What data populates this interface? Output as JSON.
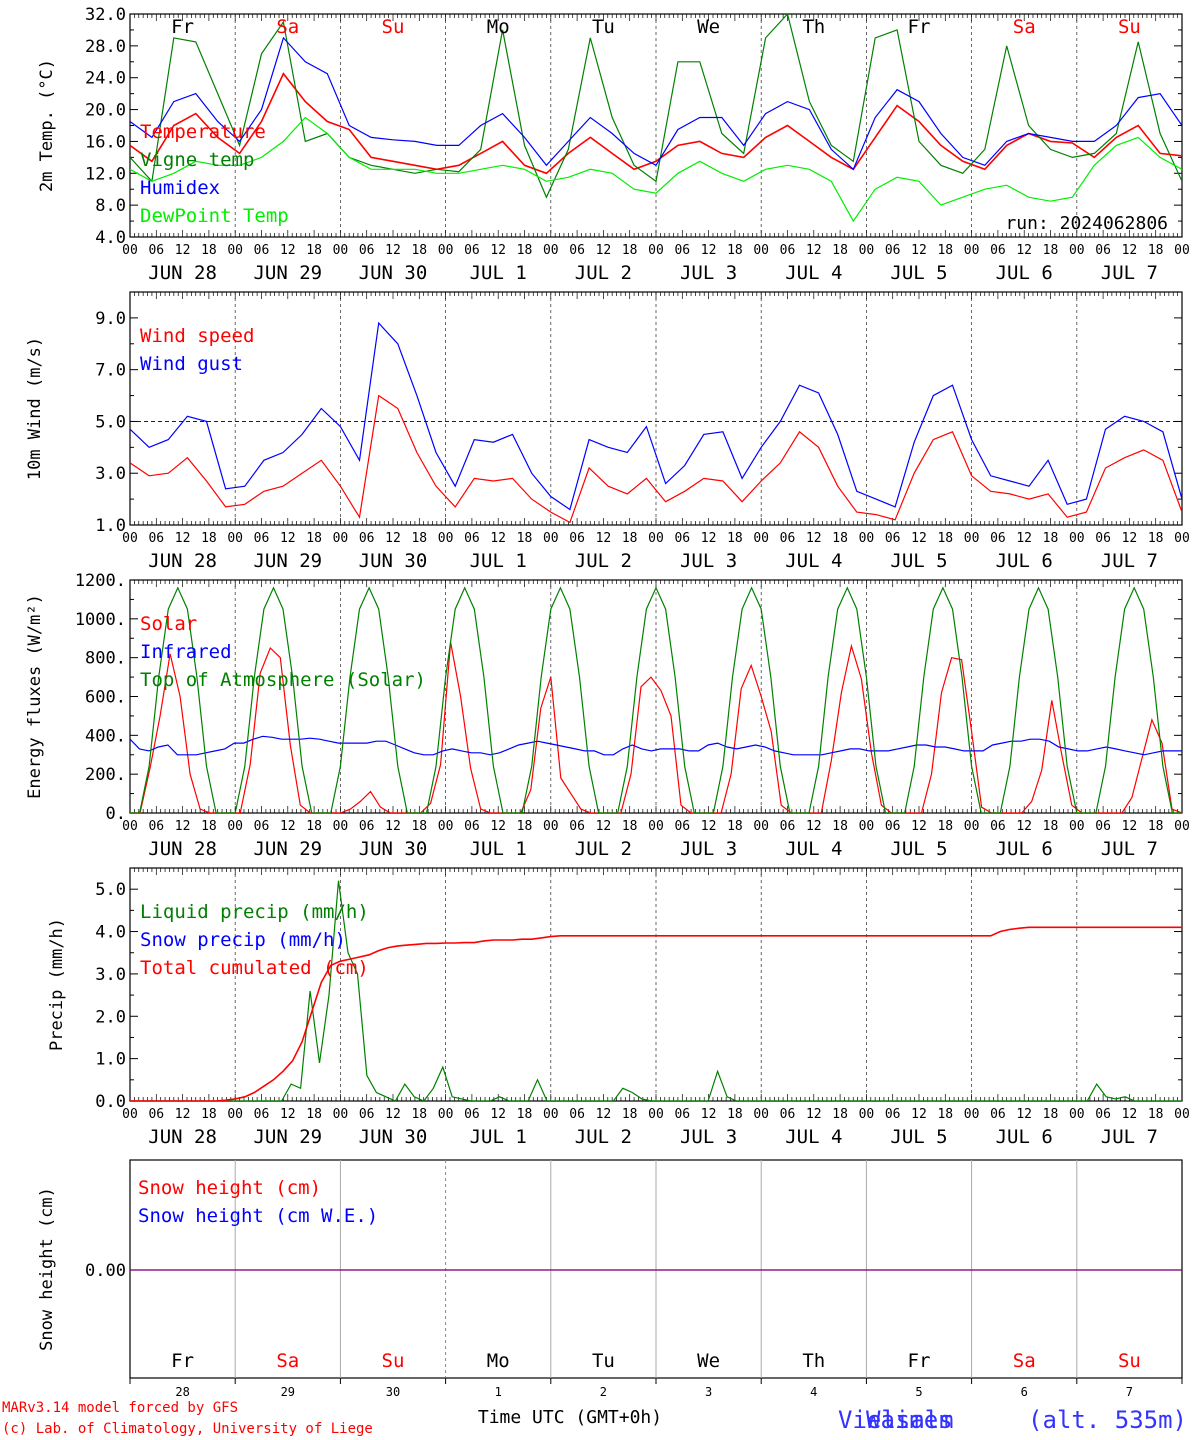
{
  "days": {
    "names": [
      "Fr",
      "Sa",
      "Su",
      "Mo",
      "Tu",
      "We",
      "Th",
      "Fr",
      "Sa",
      "Su"
    ],
    "weekend": [
      false,
      true,
      true,
      false,
      false,
      false,
      false,
      false,
      true,
      true
    ],
    "dates": [
      "JUN 28",
      "JUN 29",
      "JUN 30",
      "JUL  1",
      "JUL  2",
      "JUL  3",
      "JUL  4",
      "JUL  5",
      "JUL  6",
      "JUL  7"
    ],
    "day_numbers": [
      "28",
      "29",
      "30",
      "1",
      "2",
      "3",
      "4",
      "5",
      "6",
      "7"
    ],
    "hour_ticks": [
      "00",
      "06",
      "12",
      "18"
    ],
    "end_hour": "00"
  },
  "colors": {
    "temperature": "#ff0000",
    "vigne": "#008000",
    "humidex": "#0000ff",
    "dewpoint": "#00ee00",
    "weekday": "#000000",
    "weekend": "#ff0000",
    "footer": "#ff0000",
    "station": "#3333ff"
  },
  "footer": {
    "model_line": "MARv3.14 model forced by GFS",
    "credit_line": "(c) Lab. of Climatology, University of Liege",
    "xlabel": "Time UTC (GMT+0h)",
    "station_overlay": "Vielsalm",
    "station": "Waimes",
    "station_suffix": "(alt. 535m)"
  },
  "chart_data": [
    {
      "id": "temperature",
      "type": "line",
      "ylabel": "2m Temp. (°C)",
      "ylim": [
        4,
        32
      ],
      "yticks": [
        "4.0",
        "8.0",
        "12.0",
        "16.0",
        "20.0",
        "24.0",
        "28.0",
        "32.0"
      ],
      "run_label": "run: 2024062806",
      "x_hours_start": 0,
      "x_hours_end": 240,
      "step_hours": 6,
      "series": [
        {
          "name": "Temperature",
          "color": "#ff0000",
          "values": [
            15.5,
            13.5,
            18,
            19.5,
            16.5,
            14.5,
            18.5,
            24.5,
            21,
            18.5,
            17.5,
            14,
            13.5,
            13,
            12.5,
            13,
            14.5,
            16,
            13,
            12,
            14.5,
            16.5,
            14.5,
            12.5,
            13.5,
            15.5,
            16,
            14.5,
            14,
            16.5,
            18,
            16,
            14,
            12.5,
            16.5,
            20.5,
            18.5,
            15.5,
            13.5,
            12.5,
            15.5,
            17,
            16,
            15.8,
            14,
            16.5,
            18,
            14.5,
            14.2
          ]
        },
        {
          "name": "Vigne temp",
          "color": "#008000",
          "values": [
            14,
            11,
            29,
            28.5,
            22,
            15.5,
            27,
            31,
            16,
            17,
            14,
            13,
            12.5,
            12,
            12.5,
            12.2,
            15,
            30,
            15.5,
            9,
            15,
            29,
            19,
            13,
            11,
            26,
            26,
            17,
            14.5,
            29,
            32,
            21,
            15.5,
            13.5,
            29,
            30,
            16,
            13,
            12,
            15,
            28,
            18,
            15,
            14,
            14.5,
            17,
            28.5,
            17,
            11
          ]
        },
        {
          "name": "Humidex",
          "color": "#0000ff",
          "values": [
            18.5,
            16.5,
            21,
            22,
            18.5,
            16,
            20,
            29,
            26,
            24.5,
            18,
            16.5,
            16.2,
            16,
            15.5,
            15.5,
            18,
            19.5,
            16.5,
            13,
            16,
            19,
            17,
            14.5,
            13,
            17.5,
            19,
            19,
            15.5,
            19.5,
            21,
            20,
            15,
            12.5,
            19,
            22.5,
            21,
            17,
            14,
            13,
            16,
            17,
            16.5,
            16,
            16,
            18,
            21.5,
            22,
            18
          ]
        },
        {
          "name": "DewPoint Temp",
          "color": "#00ee00",
          "values": [
            12.5,
            11,
            12,
            13.5,
            13,
            13,
            14,
            16,
            19,
            17,
            14,
            12.5,
            12.5,
            12.5,
            12,
            12,
            12.5,
            13,
            12.5,
            11,
            11.5,
            12.5,
            12,
            10,
            9.5,
            12,
            13.5,
            12,
            11,
            12.5,
            13,
            12.5,
            11,
            6,
            10,
            11.5,
            11,
            8,
            9,
            10,
            10.5,
            9,
            8.5,
            9,
            13,
            15.5,
            16.5,
            14,
            12.5
          ]
        }
      ]
    },
    {
      "id": "wind",
      "type": "line",
      "ylabel": "10m Wind (m/s)",
      "ylim": [
        1,
        10
      ],
      "yticks": [
        "1.0",
        "3.0",
        "5.0",
        "7.0",
        "9.0"
      ],
      "reference_line": 5,
      "x_hours_start": 0,
      "x_hours_end": 240,
      "step_hours": 6,
      "series": [
        {
          "name": "Wind speed",
          "color": "#ff0000",
          "values": [
            3.4,
            2.9,
            3.0,
            3.6,
            2.7,
            1.7,
            1.8,
            2.3,
            2.5,
            3.0,
            3.5,
            2.5,
            1.3,
            6.0,
            5.5,
            3.8,
            2.5,
            1.7,
            2.8,
            2.7,
            2.8,
            2.0,
            1.5,
            1.1,
            3.2,
            2.5,
            2.2,
            2.8,
            1.9,
            2.3,
            2.8,
            2.7,
            1.9,
            2.7,
            3.4,
            4.6,
            4.0,
            2.5,
            1.5,
            1.4,
            1.2,
            3.0,
            4.3,
            4.6,
            2.9,
            2.3,
            2.2,
            2.0,
            2.2,
            1.3,
            1.5,
            3.2,
            3.6,
            3.9,
            3.5,
            1.5
          ]
        },
        {
          "name": "Wind gust",
          "color": "#0000ff",
          "values": [
            4.7,
            4.0,
            4.3,
            5.2,
            5.0,
            2.4,
            2.5,
            3.5,
            3.8,
            4.5,
            5.5,
            4.8,
            3.5,
            8.8,
            8.0,
            6.0,
            3.8,
            2.5,
            4.3,
            4.2,
            4.5,
            3.0,
            2.1,
            1.6,
            4.3,
            4.0,
            3.8,
            4.8,
            2.6,
            3.3,
            4.5,
            4.6,
            2.8,
            4.0,
            5.0,
            6.4,
            6.1,
            4.5,
            2.3,
            2.0,
            1.7,
            4.2,
            6.0,
            6.4,
            4.3,
            2.9,
            2.7,
            2.5,
            3.5,
            1.8,
            2.0,
            4.7,
            5.2,
            5.0,
            4.6,
            2.0
          ]
        }
      ]
    },
    {
      "id": "energy",
      "type": "line",
      "ylabel": "Energy fluxes (W/m²)",
      "ylim": [
        0,
        1200
      ],
      "yticks": [
        "0.",
        "200.",
        "400.",
        "600.",
        "800.",
        "1000.",
        "1200."
      ],
      "x_hours_start": 0,
      "x_hours_end": 240,
      "step_hours": 3,
      "series": [
        {
          "name": "Solar",
          "color": "#ff0000",
          "values": [
            0,
            0,
            230,
            500,
            820,
            600,
            200,
            20,
            0,
            0,
            0,
            0,
            250,
            720,
            850,
            800,
            350,
            40,
            0,
            0,
            0,
            0,
            20,
            60,
            110,
            30,
            0,
            0,
            0,
            0,
            50,
            250,
            880,
            600,
            230,
            20,
            0,
            0,
            0,
            0,
            120,
            540,
            700,
            180,
            100,
            20,
            0,
            0,
            0,
            0,
            200,
            650,
            700,
            630,
            500,
            40,
            0,
            0,
            0,
            0,
            200,
            640,
            760,
            600,
            420,
            40,
            0,
            0,
            0,
            0,
            270,
            620,
            860,
            690,
            310,
            40,
            0,
            0,
            0,
            0,
            200,
            620,
            800,
            790,
            420,
            30,
            0,
            0,
            0,
            0,
            60,
            220,
            580,
            300,
            40,
            0,
            0,
            0,
            0,
            0,
            80,
            280,
            480,
            360,
            20,
            0
          ]
        },
        {
          "name": "Infrared",
          "color": "#0000ff",
          "values": [
            380,
            330,
            320,
            340,
            350,
            300,
            300,
            300,
            310,
            320,
            330,
            360,
            360,
            380,
            395,
            390,
            380,
            380,
            380,
            385,
            380,
            370,
            360,
            360,
            360,
            360,
            370,
            370,
            350,
            330,
            310,
            300,
            300,
            320,
            330,
            320,
            310,
            310,
            300,
            310,
            330,
            350,
            360,
            370,
            360,
            350,
            340,
            330,
            320,
            320,
            300,
            300,
            330,
            350,
            330,
            320,
            330,
            330,
            330,
            320,
            320,
            350,
            360,
            340,
            330,
            340,
            350,
            340,
            320,
            310,
            300,
            300,
            300,
            300,
            310,
            320,
            330,
            330,
            320,
            320,
            320,
            330,
            340,
            350,
            350,
            340,
            340,
            330,
            320,
            320,
            320,
            350,
            360,
            370,
            370,
            380,
            380,
            370,
            340,
            330,
            320,
            320,
            330,
            340,
            330,
            320,
            310,
            300,
            310,
            320,
            320,
            320
          ]
        },
        {
          "name": "Top of Atmosphere (Solar)",
          "color": "#008000",
          "values": [
            0,
            0,
            240,
            700,
            1050,
            1160,
            1050,
            700,
            240,
            0,
            0,
            0,
            240,
            700,
            1050,
            1160,
            1050,
            700,
            240,
            0,
            0,
            0,
            240,
            700,
            1050,
            1160,
            1050,
            700,
            240,
            0,
            0,
            0,
            240,
            700,
            1050,
            1160,
            1050,
            700,
            240,
            0,
            0,
            0,
            240,
            700,
            1050,
            1160,
            1050,
            700,
            240,
            0,
            0,
            0,
            240,
            700,
            1050,
            1160,
            1050,
            700,
            240,
            0,
            0,
            0,
            240,
            700,
            1050,
            1160,
            1050,
            700,
            240,
            0,
            0,
            0,
            240,
            700,
            1050,
            1160,
            1050,
            700,
            240,
            0,
            0,
            0,
            240,
            700,
            1050,
            1160,
            1050,
            700,
            240,
            0,
            0,
            0,
            240,
            700,
            1050,
            1160,
            1050,
            700,
            240,
            0,
            0,
            0,
            240,
            700,
            1050,
            1160,
            1050,
            700,
            240,
            0,
            0
          ]
        }
      ]
    },
    {
      "id": "precip",
      "type": "line",
      "ylabel": "Precip (mm/h)",
      "ylim": [
        0,
        5.5
      ],
      "yticks": [
        "0.0",
        "1.0",
        "2.0",
        "3.0",
        "4.0",
        "5.0"
      ],
      "x_hours_start": 0,
      "x_hours_end": 240,
      "step_hours": 3,
      "series": [
        {
          "name": "Liquid precip (mm/h)",
          "color": "#008000",
          "values": [
            0,
            0,
            0,
            0,
            0,
            0,
            0,
            0,
            0,
            0,
            0,
            0,
            0,
            0,
            0,
            0,
            0,
            0.4,
            0.3,
            2.6,
            0.9,
            2.5,
            5.2,
            3.5,
            3.0,
            0.6,
            0.2,
            0.1,
            0,
            0.4,
            0.1,
            0,
            0.3,
            0.8,
            0.1,
            0.05,
            0,
            0,
            0,
            0.1,
            0,
            0,
            0,
            0.5,
            0,
            0,
            0,
            0,
            0,
            0,
            0,
            0,
            0.3,
            0.2,
            0.05,
            0,
            0,
            0,
            0,
            0,
            0,
            0,
            0.7,
            0.1,
            0,
            0,
            0,
            0,
            0,
            0,
            0,
            0,
            0,
            0,
            0,
            0,
            0,
            0,
            0,
            0,
            0,
            0,
            0,
            0,
            0,
            0,
            0,
            0,
            0,
            0,
            0,
            0,
            0,
            0,
            0,
            0,
            0,
            0,
            0,
            0,
            0,
            0,
            0.4,
            0.1,
            0.05,
            0.1,
            0,
            0,
            0,
            0,
            0,
            0
          ]
        },
        {
          "name": "Snow precip (mm/h)",
          "color": "#0000ff",
          "values": []
        },
        {
          "name": "Total cumulated (cm)",
          "color": "#ff0000",
          "values": [
            0,
            0,
            0,
            0,
            0,
            0,
            0,
            0,
            0,
            0,
            0.02,
            0.05,
            0.1,
            0.2,
            0.35,
            0.5,
            0.7,
            0.95,
            1.4,
            2.1,
            2.8,
            3.2,
            3.3,
            3.35,
            3.4,
            3.45,
            3.55,
            3.62,
            3.66,
            3.68,
            3.7,
            3.72,
            3.72,
            3.73,
            3.73,
            3.74,
            3.74,
            3.78,
            3.8,
            3.8,
            3.8,
            3.82,
            3.82,
            3.85,
            3.88,
            3.9,
            3.9,
            3.9,
            3.9,
            3.9,
            3.9,
            3.9,
            3.9,
            3.9,
            3.9,
            3.9,
            3.9,
            3.9,
            3.9,
            3.9,
            3.9,
            3.9,
            3.9,
            3.9,
            3.9,
            3.9,
            3.9,
            3.9,
            3.9,
            3.9,
            3.9,
            3.9,
            3.9,
            3.9,
            3.9,
            3.9,
            3.9,
            3.9,
            3.9,
            3.9,
            3.9,
            3.9,
            3.9,
            3.9,
            3.9,
            3.9,
            3.9,
            3.9,
            3.9,
            3.9,
            3.9,
            4.0,
            4.05,
            4.08,
            4.1,
            4.1,
            4.1,
            4.1,
            4.1,
            4.1,
            4.1,
            4.1,
            4.1,
            4.1,
            4.1,
            4.1,
            4.1,
            4.1,
            4.1,
            4.1,
            4.1
          ]
        }
      ]
    },
    {
      "id": "snow",
      "type": "line",
      "ylabel": "Snow height (cm)",
      "yticks": [
        "0.00"
      ],
      "x_hours_start": 0,
      "x_hours_end": 240,
      "series": [
        {
          "name": "Snow height (cm)",
          "color": "#ff0000",
          "values": [
            0,
            0
          ]
        },
        {
          "name": "Snow height (cm W.E.)",
          "color": "#0000ff",
          "values": [
            0,
            0
          ]
        }
      ]
    }
  ]
}
